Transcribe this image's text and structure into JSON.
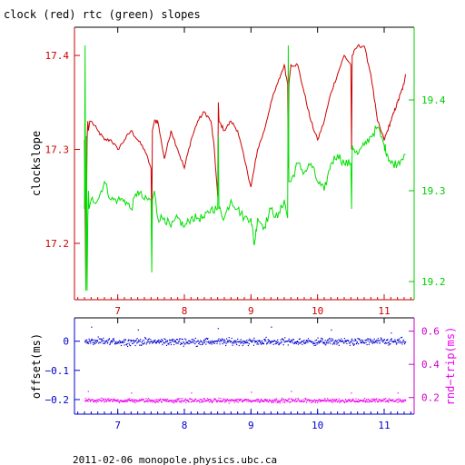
{
  "title": "clock (red) rtc (green) slopes",
  "footer": "2011-02-06  monopole.physics.ubc.ca",
  "colors": {
    "red": "#cc0000",
    "green": "#00e000",
    "blue": "#0000cc",
    "magenta": "#ee00ee"
  },
  "chart_data": [
    {
      "type": "line",
      "title": "clock (red) rtc (green) slopes",
      "xlim": [
        6.35,
        11.45
      ],
      "x_ticks": [
        7,
        8,
        9,
        10,
        11
      ],
      "x_tick_labels": [
        "7",
        "8",
        "9",
        "10",
        "11"
      ],
      "ylabel": "clockslope",
      "ylim_left": [
        17.14,
        17.43
      ],
      "y_ticks_left": [
        17.2,
        17.3,
        17.4
      ],
      "y_tick_labels_left": [
        "17.2",
        "17.3",
        "17.4"
      ],
      "ylim_right": [
        19.18,
        19.48
      ],
      "y_ticks_right": [
        19.2,
        19.3,
        19.4
      ],
      "y_tick_labels_right": [
        "19.2",
        "19.3",
        "19.4"
      ],
      "series": [
        {
          "color": "#cc0000",
          "axis": "left",
          "x": [
            6.5,
            6.52,
            6.54,
            6.55,
            6.56,
            6.58,
            6.6,
            6.7,
            6.8,
            6.9,
            7.0,
            7.1,
            7.2,
            7.3,
            7.4,
            7.5,
            7.51,
            7.52,
            7.55,
            7.6,
            7.7,
            7.8,
            7.9,
            8.0,
            8.1,
            8.2,
            8.3,
            8.4,
            8.45,
            8.5,
            8.51,
            8.52,
            8.6,
            8.7,
            8.8,
            8.9,
            9.0,
            9.05,
            9.1,
            9.2,
            9.3,
            9.4,
            9.5,
            9.55,
            9.56,
            9.57,
            9.6,
            9.7,
            9.8,
            9.9,
            10.0,
            10.1,
            10.2,
            10.3,
            10.4,
            10.5,
            10.51,
            10.52,
            10.6,
            10.7,
            10.8,
            10.9,
            11.0,
            11.05,
            11.1,
            11.15,
            11.2,
            11.25,
            11.3,
            11.32
          ],
          "y": [
            17.31,
            17.15,
            17.31,
            17.33,
            17.32,
            17.33,
            17.33,
            17.32,
            17.31,
            17.31,
            17.3,
            17.31,
            17.32,
            17.31,
            17.3,
            17.28,
            17.22,
            17.32,
            17.33,
            17.33,
            17.29,
            17.32,
            17.3,
            17.28,
            17.31,
            17.33,
            17.34,
            17.33,
            17.3,
            17.25,
            17.35,
            17.33,
            17.32,
            17.33,
            17.32,
            17.29,
            17.26,
            17.28,
            17.3,
            17.32,
            17.35,
            17.37,
            17.39,
            17.37,
            17.28,
            17.37,
            17.39,
            17.39,
            17.36,
            17.33,
            17.31,
            17.33,
            17.36,
            17.38,
            17.4,
            17.39,
            17.3,
            17.4,
            17.41,
            17.41,
            17.38,
            17.33,
            17.31,
            17.32,
            17.33,
            17.34,
            17.35,
            17.36,
            17.37,
            17.38
          ]
        },
        {
          "color": "#00e000",
          "axis": "right",
          "x": [
            6.5,
            6.51,
            6.52,
            6.53,
            6.54,
            6.55,
            6.56,
            6.57,
            6.6,
            6.7,
            6.8,
            6.9,
            7.0,
            7.1,
            7.2,
            7.3,
            7.4,
            7.5,
            7.51,
            7.52,
            7.55,
            7.6,
            7.7,
            7.8,
            7.9,
            8.0,
            8.1,
            8.2,
            8.3,
            8.4,
            8.5,
            8.51,
            8.52,
            8.6,
            8.7,
            8.8,
            8.9,
            9.0,
            9.05,
            9.1,
            9.2,
            9.3,
            9.4,
            9.5,
            9.55,
            9.56,
            9.57,
            9.6,
            9.7,
            9.8,
            9.9,
            10.0,
            10.1,
            10.2,
            10.3,
            10.4,
            10.5,
            10.51,
            10.52,
            10.6,
            10.7,
            10.8,
            10.9,
            11.0,
            11.05,
            11.1,
            11.2,
            11.3,
            11.32
          ],
          "y": [
            19.28,
            19.46,
            19.19,
            19.36,
            19.19,
            19.27,
            19.3,
            19.28,
            19.29,
            19.29,
            19.31,
            19.29,
            19.29,
            19.29,
            19.28,
            19.3,
            19.29,
            19.29,
            19.21,
            19.29,
            19.3,
            19.27,
            19.27,
            19.26,
            19.27,
            19.26,
            19.27,
            19.27,
            19.27,
            19.28,
            19.28,
            19.36,
            19.28,
            19.27,
            19.29,
            19.28,
            19.27,
            19.27,
            19.24,
            19.27,
            19.26,
            19.28,
            19.27,
            19.29,
            19.27,
            19.46,
            19.31,
            19.31,
            19.33,
            19.32,
            19.33,
            19.31,
            19.3,
            19.33,
            19.34,
            19.33,
            19.33,
            19.28,
            19.35,
            19.34,
            19.35,
            19.36,
            19.37,
            19.35,
            19.34,
            19.33,
            19.33,
            19.34,
            19.34
          ]
        }
      ]
    },
    {
      "type": "scatter",
      "xlim": [
        6.35,
        11.45
      ],
      "x_ticks": [
        7,
        8,
        9,
        10,
        11
      ],
      "x_tick_labels": [
        "7",
        "8",
        "9",
        "10",
        "11"
      ],
      "ylabel": "offset(ms)",
      "ylim_left": [
        -0.25,
        0.08
      ],
      "y_ticks_left": [
        0,
        -0.1,
        -0.2
      ],
      "y_tick_labels_left": [
        "0",
        "−0.1",
        "−0.2"
      ],
      "ylabel_right": "rnd−trip(ms)",
      "ylim_right": [
        0.1,
        0.68
      ],
      "y_ticks_right": [
        0.2,
        0.4,
        0.6
      ],
      "y_tick_labels_right": [
        "0.2",
        "0.4",
        "0.6"
      ],
      "series": [
        {
          "color": "#0000cc",
          "axis": "left",
          "x_range": [
            6.5,
            11.32
          ],
          "center": 0.0,
          "spread": 0.012,
          "outliers": [
            [
              6.6,
              0.05
            ],
            [
              7.3,
              0.04
            ],
            [
              8.5,
              0.045
            ],
            [
              9.3,
              0.05
            ],
            [
              10.2,
              0.04
            ],
            [
              11.1,
              0.03
            ]
          ]
        },
        {
          "color": "#ee00ee",
          "axis": "right",
          "x_range": [
            6.5,
            11.32
          ],
          "center": 0.185,
          "spread": 0.012,
          "outliers": [
            [
              6.55,
              0.24
            ],
            [
              7.2,
              0.23
            ],
            [
              8.1,
              0.23
            ],
            [
              9.0,
              0.235
            ],
            [
              9.6,
              0.24
            ],
            [
              10.5,
              0.23
            ],
            [
              11.2,
              0.23
            ]
          ]
        }
      ]
    }
  ]
}
